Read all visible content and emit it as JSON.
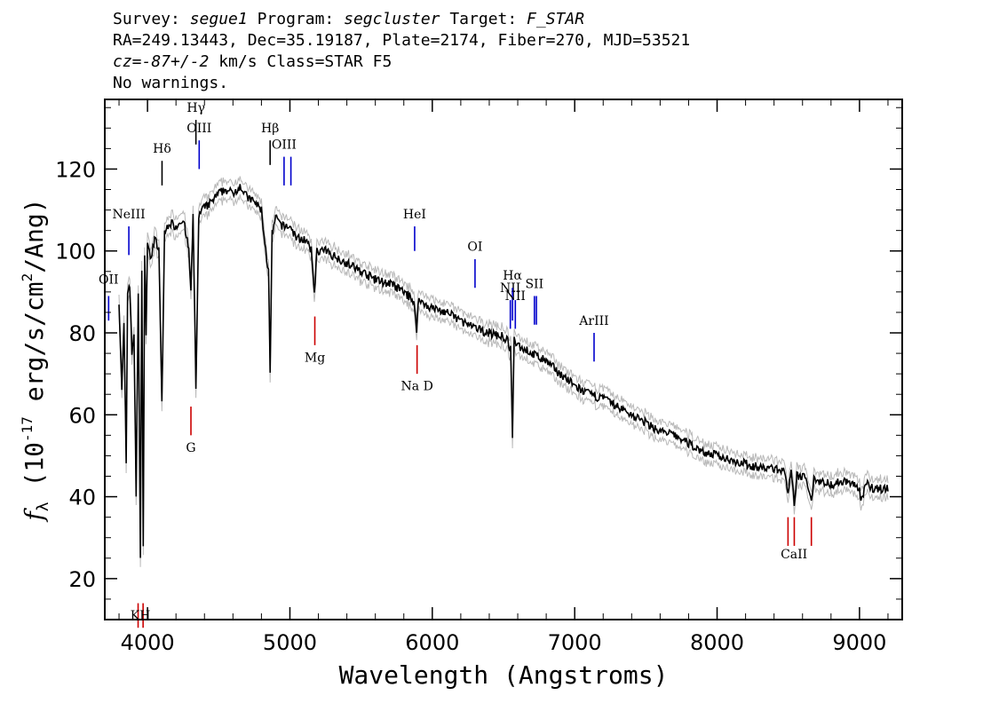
{
  "header": {
    "line1": {
      "survey_label": "Survey:",
      "survey": "segue1",
      "program_label": "Program:",
      "program": "segcluster",
      "target_label": "Target:",
      "target": "F_STAR"
    },
    "line2": "RA=249.13443, Dec=35.19187, Plate=2174, Fiber=270, MJD=53521",
    "line3": {
      "cz": "cz=-87+/-2",
      "rest": " km/s Class=STAR F5"
    },
    "line4": "No warnings."
  },
  "chart_data": {
    "type": "line",
    "xlabel": "Wavelength (Angstroms)",
    "ylabel": "f_λ (10^-17 erg/s/cm^2/Ang)",
    "ylabel_parts": {
      "f": "f",
      "lambda": "λ",
      "pre": "(10",
      "exp1": "-17",
      "mid": " erg/s/cm",
      "exp2": "2",
      "post": "/Ang)"
    },
    "xlim": [
      3700,
      9300
    ],
    "ylim": [
      10,
      137
    ],
    "x_ticks": [
      "4000",
      "5000",
      "6000",
      "7000",
      "8000",
      "9000"
    ],
    "y_ticks": [
      "20",
      "40",
      "60",
      "80",
      "100",
      "120"
    ],
    "grid": false,
    "series": [
      {
        "color": "#000000",
        "band_color": "#b8b8b8",
        "x": [
          3800,
          3820,
          3835,
          3850,
          3860,
          3875,
          3890,
          3905,
          3920,
          3935,
          3950,
          3960,
          3970,
          3980,
          3990,
          4000,
          4020,
          4050,
          4080,
          4101,
          4120,
          4150,
          4200,
          4250,
          4290,
          4305,
          4320,
          4340,
          4360,
          4380,
          4420,
          4450,
          4500,
          4550,
          4600,
          4650,
          4700,
          4750,
          4800,
          4830,
          4850,
          4861,
          4875,
          4900,
          4950,
          5000,
          5050,
          5100,
          5150,
          5172,
          5190,
          5250,
          5300,
          5400,
          5500,
          5600,
          5700,
          5800,
          5870,
          5890,
          5900,
          5950,
          6000,
          6100,
          6200,
          6300,
          6400,
          6500,
          6530,
          6550,
          6563,
          6575,
          6600,
          6700,
          6800,
          6900,
          7000,
          7100,
          7200,
          7300,
          7400,
          7500,
          7600,
          7700,
          7800,
          7900,
          8000,
          8100,
          8200,
          8300,
          8400,
          8480,
          8498,
          8520,
          8542,
          8560,
          8600,
          8630,
          8662,
          8680,
          8700,
          8800,
          8900,
          9000,
          9010,
          9050,
          9100,
          9200
        ],
        "y": [
          88,
          66,
          82,
          48,
          90,
          92,
          75,
          80,
          40,
          90,
          26,
          95,
          27,
          100,
          80,
          102,
          98,
          103,
          100,
          63,
          104,
          107,
          106,
          108,
          100,
          90,
          108,
          67,
          108,
          110,
          111,
          112,
          114,
          115,
          114,
          116,
          113,
          112,
          110,
          100,
          95,
          70,
          104,
          108,
          106,
          106,
          103,
          103,
          100,
          90,
          100,
          100,
          99,
          97,
          95,
          93,
          92,
          90,
          88,
          80,
          88,
          87,
          86,
          85,
          83,
          81,
          80,
          79,
          78,
          76,
          55,
          78,
          77,
          75,
          73,
          70,
          67,
          65,
          64,
          62,
          60,
          58,
          56,
          55,
          53,
          51,
          50,
          49,
          48,
          47,
          47,
          46,
          40,
          46,
          38,
          45,
          45,
          44,
          39,
          45,
          44,
          43,
          44,
          42,
          39,
          43,
          42,
          42
        ]
      }
    ],
    "line_annotations": [
      {
        "label": "OII",
        "wavelength": 3727,
        "color": "#0000cc",
        "y_top": 89,
        "y_bottom": 83,
        "label_y": 92
      },
      {
        "label": "NeIII",
        "wavelength": 3869,
        "color": "#0000cc",
        "y_top": 106,
        "y_bottom": 99,
        "label_y": 108
      },
      {
        "label": "Hδ",
        "wavelength": 4102,
        "color": "#000000",
        "y_top": 122,
        "y_bottom": 116,
        "label_y": 124
      },
      {
        "label": "Hγ",
        "wavelength": 4340,
        "color": "#000000",
        "y_top": 132,
        "y_bottom": 126,
        "label_y": 134
      },
      {
        "label": "OIII",
        "wavelength": 4363,
        "color": "#0000cc",
        "y_top": 127,
        "y_bottom": 120,
        "label_y": 129
      },
      {
        "label": "Hβ",
        "wavelength": 4861,
        "color": "#000000",
        "y_top": 127,
        "y_bottom": 121,
        "label_y": 129
      },
      {
        "label": "OIII",
        "wavelength": 4959,
        "color": "#0000cc",
        "y_top": 123,
        "y_bottom": 116,
        "label_y": 125
      },
      {
        "label": "",
        "wavelength": 5007,
        "color": "#0000cc",
        "y_top": 123,
        "y_bottom": 116,
        "label_y": 125
      },
      {
        "label": "HeI",
        "wavelength": 5876,
        "color": "#0000cc",
        "y_top": 106,
        "y_bottom": 100,
        "label_y": 108
      },
      {
        "label": "OI",
        "wavelength": 6300,
        "color": "#0000cc",
        "y_top": 98,
        "y_bottom": 91,
        "label_y": 100
      },
      {
        "label": "NII",
        "wavelength": 6548,
        "color": "#0000cc",
        "y_top": 88,
        "y_bottom": 81,
        "label_y": 90
      },
      {
        "label": "Hα",
        "wavelength": 6563,
        "color": "#0000cc",
        "y_top": 91,
        "y_bottom": 83,
        "label_y": 93
      },
      {
        "label": "NII",
        "wavelength": 6583,
        "color": "#0000cc",
        "y_top": 88,
        "y_bottom": 81,
        "label_y": 88
      },
      {
        "label": "SII",
        "wavelength": 6717,
        "color": "#0000cc",
        "y_top": 89,
        "y_bottom": 82,
        "label_y": 91
      },
      {
        "label": "",
        "wavelength": 6731,
        "color": "#0000cc",
        "y_top": 89,
        "y_bottom": 82,
        "label_y": 91
      },
      {
        "label": "ArIII",
        "wavelength": 7136,
        "color": "#0000cc",
        "y_top": 80,
        "y_bottom": 73,
        "label_y": 82
      },
      {
        "label": "KH",
        "wavelength": 3950,
        "color": "#cc0000",
        "y_top": 14,
        "y_bottom": 8,
        "label_y": 10,
        "ticks": [
          3934,
          3969
        ]
      },
      {
        "label": "G",
        "wavelength": 4305,
        "color": "#cc0000",
        "y_top": 62,
        "y_bottom": 55,
        "label_y": 51
      },
      {
        "label": "Mg",
        "wavelength": 5175,
        "color": "#cc0000",
        "y_top": 84,
        "y_bottom": 77,
        "label_y": 73
      },
      {
        "label": "Na D",
        "wavelength": 5893,
        "color": "#cc0000",
        "y_top": 77,
        "y_bottom": 70,
        "label_y": 66
      },
      {
        "label": "CaII",
        "wavelength": 8540,
        "color": "#cc0000",
        "y_top": 35,
        "y_bottom": 28,
        "label_y": 25,
        "ticks": [
          8498,
          8542,
          8662
        ]
      }
    ]
  }
}
